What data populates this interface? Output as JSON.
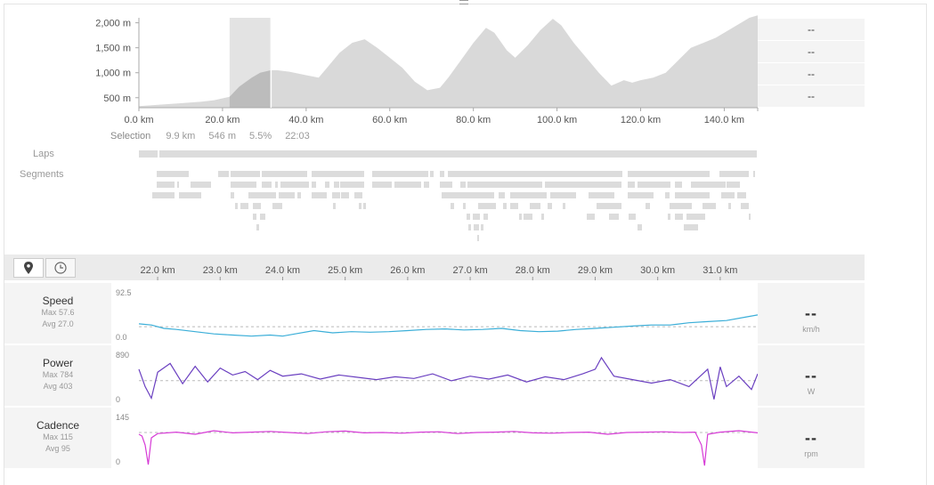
{
  "overview": {
    "right_values": [
      "--",
      "--",
      "--",
      "--"
    ]
  },
  "selection": {
    "label": "Selection",
    "distance": "9.9 km",
    "elevation": "546 m",
    "grade": "5.5%",
    "time": "22:03"
  },
  "lanes": {
    "laps_label": "Laps",
    "segments_label": "Segments"
  },
  "toolbar": {
    "map_icon": "map-pin-icon",
    "clock_icon": "clock-icon"
  },
  "metrics": [
    {
      "name": "Speed",
      "max": "Max 57.6",
      "avg": "Avg 27.0",
      "value": "--",
      "unit": "km/h",
      "ymax_label": "92.5",
      "ymin_label": "0.0",
      "color": "#3aaed8"
    },
    {
      "name": "Power",
      "max": "Max 784",
      "avg": "Avg 403",
      "value": "--",
      "unit": "W",
      "ymax_label": "890",
      "ymin_label": "0",
      "color": "#6a3fc0"
    },
    {
      "name": "Cadence",
      "max": "Max 115",
      "avg": "Avg 95",
      "value": "--",
      "unit": "rpm",
      "ymax_label": "145",
      "ymin_label": "0",
      "color": "#d63ad6"
    }
  ],
  "chart_data": [
    {
      "type": "area",
      "title": "",
      "xlabel": "",
      "ylabel": "",
      "x_ticks": [
        "0.0 km",
        "20.0 km",
        "40.0 km",
        "60.0 km",
        "80.0 km",
        "100.0 km",
        "120.0 km",
        "140.0 km"
      ],
      "y_ticks": [
        "500 m",
        "1,000 m",
        "1,500 m",
        "2,000 m"
      ],
      "xlim": [
        0,
        148
      ],
      "ylim": [
        300,
        2100
      ],
      "selection_km": [
        21.7,
        31.6
      ],
      "series": [
        {
          "x": [
            0,
            5,
            10,
            15,
            18,
            21.7,
            24,
            27,
            29,
            31.6,
            33,
            36,
            40,
            43,
            45,
            48,
            51,
            54,
            57,
            60,
            63,
            66,
            69,
            72,
            74,
            77,
            80,
            83,
            85,
            88,
            90,
            93,
            96,
            99,
            101,
            104,
            107,
            110,
            113,
            116,
            118,
            120,
            123,
            126,
            129,
            132,
            135,
            138,
            141,
            144,
            146,
            148
          ],
          "y": [
            330,
            360,
            390,
            420,
            450,
            520,
            720,
            900,
            1000,
            1050,
            1050,
            1020,
            950,
            900,
            1100,
            1400,
            1600,
            1670,
            1500,
            1300,
            1100,
            820,
            650,
            700,
            900,
            1250,
            1600,
            1900,
            1800,
            1450,
            1300,
            1550,
            1850,
            2080,
            1950,
            1600,
            1300,
            1000,
            740,
            850,
            800,
            850,
            900,
            1000,
            1250,
            1500,
            1600,
            1700,
            1850,
            2000,
            2100,
            2150
          ]
        }
      ]
    },
    {
      "type": "line",
      "title": "",
      "series_name": "Speed",
      "xlabel": "",
      "x_ticks": [
        "22.0 km",
        "23.0 km",
        "24.0 km",
        "25.0 km",
        "26.0 km",
        "27.0 km",
        "28.0 km",
        "29.0 km",
        "30.0 km",
        "31.0 km"
      ],
      "xlim": [
        21.7,
        31.6
      ],
      "ylim": [
        0,
        92.5
      ],
      "average": 27.0,
      "series": [
        {
          "x": [
            21.7,
            21.9,
            22.1,
            22.3,
            22.6,
            22.9,
            23.2,
            23.5,
            23.8,
            24.0,
            24.2,
            24.5,
            24.8,
            25.1,
            25.4,
            25.7,
            26.0,
            26.3,
            26.6,
            26.9,
            27.2,
            27.5,
            27.8,
            28.1,
            28.4,
            28.7,
            29.0,
            29.3,
            29.6,
            29.9,
            30.2,
            30.5,
            30.8,
            31.1,
            31.4,
            31.6
          ],
          "y": [
            32,
            30,
            24,
            22,
            18,
            14,
            12,
            10,
            12,
            10,
            14,
            20,
            16,
            18,
            17,
            18,
            20,
            22,
            23,
            21,
            22,
            24,
            20,
            18,
            19,
            22,
            24,
            26,
            28,
            30,
            30,
            34,
            36,
            38,
            44,
            48
          ]
        }
      ]
    },
    {
      "type": "line",
      "title": "",
      "series_name": "Power",
      "xlabel": "",
      "xlim": [
        21.7,
        31.6
      ],
      "ylim": [
        0,
        890
      ],
      "average": 403,
      "series": [
        {
          "x": [
            21.7,
            21.8,
            21.9,
            22.0,
            22.2,
            22.4,
            22.6,
            22.8,
            23.0,
            23.2,
            23.4,
            23.6,
            23.8,
            24.0,
            24.3,
            24.6,
            24.9,
            25.2,
            25.5,
            25.8,
            26.1,
            26.4,
            26.7,
            27.0,
            27.3,
            27.6,
            27.9,
            28.2,
            28.5,
            28.8,
            29.0,
            29.1,
            29.3,
            29.6,
            29.9,
            30.2,
            30.5,
            30.8,
            30.9,
            31.0,
            31.1,
            31.3,
            31.5,
            31.6
          ],
          "y": [
            600,
            300,
            100,
            550,
            700,
            350,
            650,
            380,
            620,
            500,
            560,
            420,
            580,
            480,
            520,
            430,
            500,
            460,
            420,
            470,
            440,
            520,
            400,
            480,
            430,
            500,
            380,
            470,
            420,
            520,
            600,
            800,
            480,
            420,
            360,
            420,
            300,
            600,
            80,
            640,
            300,
            480,
            250,
            520
          ]
        }
      ]
    },
    {
      "type": "line",
      "title": "",
      "series_name": "Cadence",
      "xlabel": "",
      "xlim": [
        21.7,
        31.6
      ],
      "ylim": [
        0,
        145
      ],
      "average": 95,
      "series": [
        {
          "x": [
            21.7,
            21.75,
            21.8,
            21.85,
            21.9,
            22.0,
            22.3,
            22.6,
            22.9,
            23.2,
            23.5,
            23.8,
            24.1,
            24.4,
            24.7,
            25.0,
            25.3,
            25.6,
            25.9,
            26.2,
            26.5,
            26.8,
            27.1,
            27.4,
            27.7,
            28.0,
            28.3,
            28.6,
            28.9,
            29.2,
            29.5,
            29.8,
            30.1,
            30.4,
            30.6,
            30.7,
            30.75,
            30.8,
            31.0,
            31.3,
            31.6
          ],
          "y": [
            90,
            85,
            60,
            5,
            80,
            92,
            96,
            90,
            100,
            94,
            96,
            98,
            95,
            92,
            97,
            99,
            94,
            95,
            93,
            96,
            97,
            92,
            95,
            96,
            98,
            94,
            93,
            95,
            96,
            90,
            95,
            96,
            97,
            95,
            96,
            60,
            2,
            90,
            96,
            100,
            94
          ]
        }
      ]
    }
  ]
}
